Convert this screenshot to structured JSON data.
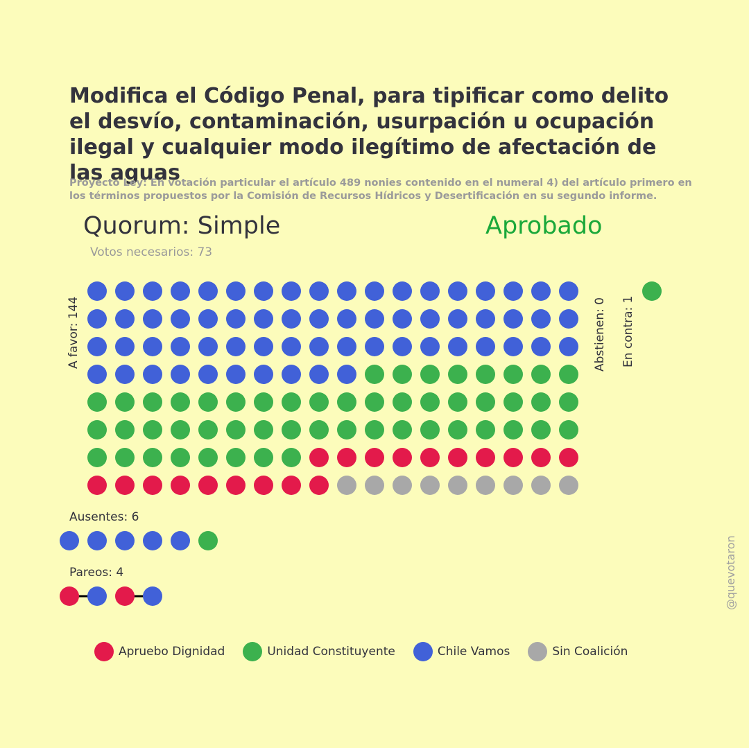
{
  "title": "Modifica el Código Penal, para tipificar como delito el desvío, contaminación, usurpación u ocupación ilegal y cualquier modo ilegítimo de afectación de las aguas",
  "subtitle": "Proyecto Ley: En votación particular el artículo 489 nonies contenido en el numeral 4) del artículo primero en los términos propuestos por la Comisión de Recursos Hídricos y Desertificación en su segundo informe.",
  "quorum": "Quorum: Simple",
  "result": "Aprobado",
  "result_color": "#1aa83a",
  "needed": "Votos necesarios: 73",
  "watermark": "@quevotaron",
  "colors": {
    "Apruebo Dignidad": "#e31a4b",
    "Unidad Constituyente": "#3cb14e",
    "Chile Vamos": "#4161d8",
    "Sin Coalición": "#a8a8a8"
  },
  "chart_data": {
    "type": "waffle",
    "groups": [
      {
        "label": "A favor: 144",
        "count": 144,
        "composition": [
          {
            "coalition": "Chile Vamos",
            "count": 64
          },
          {
            "coalition": "Unidad Constituyente",
            "count": 52
          },
          {
            "coalition": "Apruebo Dignidad",
            "count": 19
          },
          {
            "coalition": "Sin Coalición",
            "count": 9
          }
        ]
      },
      {
        "label": "Abstienen: 0",
        "count": 0,
        "composition": []
      },
      {
        "label": "En contra: 1",
        "count": 1,
        "composition": [
          {
            "coalition": "Unidad Constituyente",
            "count": 1
          }
        ]
      },
      {
        "label": "Ausentes: 6",
        "count": 6,
        "composition": [
          {
            "coalition": "Chile Vamos",
            "count": 5
          },
          {
            "coalition": "Unidad Constituyente",
            "count": 1
          }
        ]
      },
      {
        "label": "Pareos: 4",
        "count": 4,
        "pairs": [
          [
            "Apruebo Dignidad",
            "Chile Vamos"
          ],
          [
            "Apruebo Dignidad",
            "Chile Vamos"
          ]
        ]
      }
    ],
    "legend": [
      "Apruebo Dignidad",
      "Unidad Constituyente",
      "Chile Vamos",
      "Sin Coalición"
    ]
  }
}
